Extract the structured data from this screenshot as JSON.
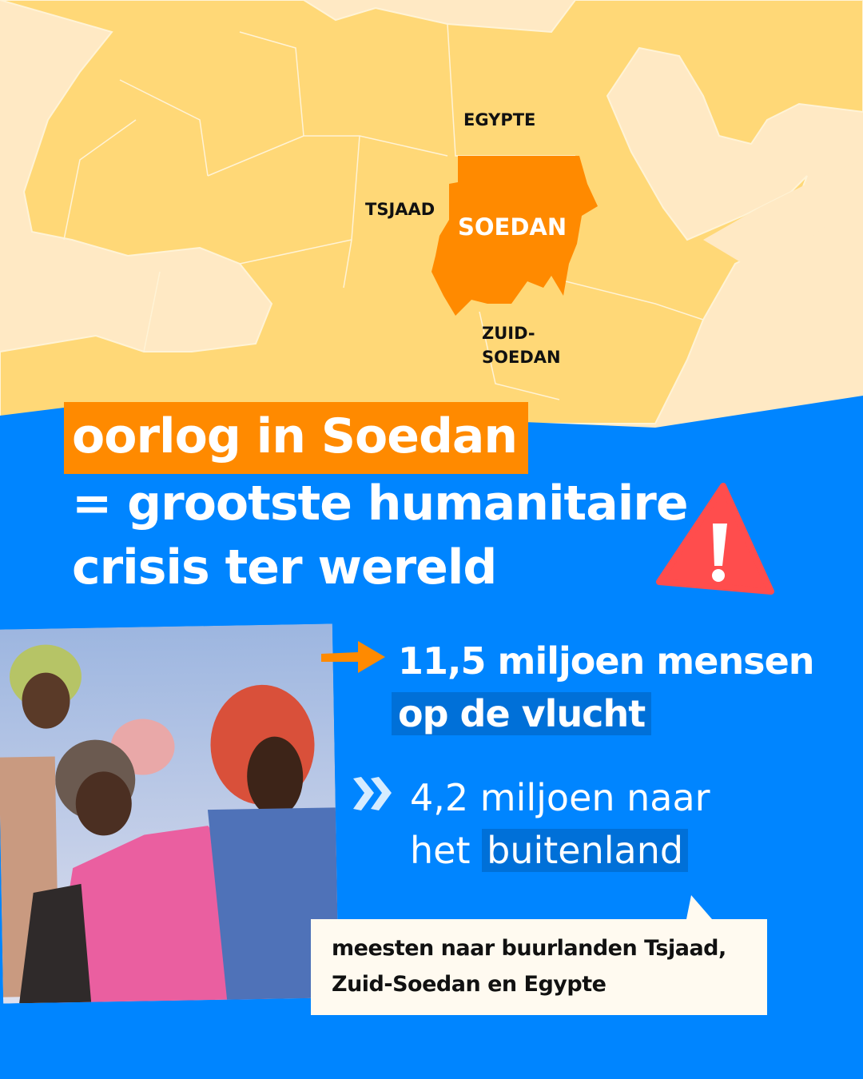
{
  "map": {
    "labels": {
      "egypt": "EGYPTE",
      "chad": "TSJAAD",
      "sudan": "SOEDAN",
      "south_sudan_1": "ZUID-",
      "south_sudan_2": "SOEDAN"
    },
    "colors": {
      "land": "#ffd877",
      "sea": "#ffe9c4",
      "highlight": "#ff8a00"
    }
  },
  "headline": {
    "line1": "oorlog in Soedan",
    "line2": "= grootste humanitaire",
    "line3": "crisis ter wereld"
  },
  "warning_icon": "warning-triangle-icon",
  "stats": {
    "first_a": "11,5 miljoen mensen",
    "first_b": "op de vlucht",
    "second_a": "4,2 miljoen naar",
    "second_b1": "het",
    "second_b2": "buitenland"
  },
  "note": {
    "line1": "meesten naar buurlanden Tsjaad,",
    "line2": "Zuid-Soedan en Egypte"
  },
  "colors": {
    "background": "#0085ff",
    "accent": "#ff8a00",
    "highlight": "#0070d8",
    "note_bg": "#fffaf0"
  }
}
